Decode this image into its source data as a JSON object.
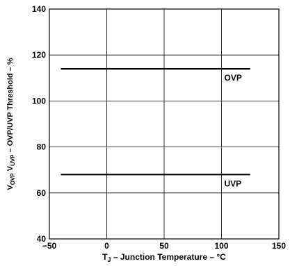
{
  "chart_data": {
    "type": "line",
    "xlim": [
      -50,
      150
    ],
    "ylim": [
      40,
      140
    ],
    "x_ticks": [
      -50,
      0,
      50,
      100,
      150
    ],
    "y_ticks": [
      40,
      60,
      80,
      100,
      120,
      140
    ],
    "x_tick_labels": [
      "−50",
      "0",
      "50",
      "100",
      "150"
    ],
    "y_tick_labels": [
      "40",
      "60",
      "80",
      "100",
      "120",
      "140"
    ],
    "grid": true,
    "xlabel": {
      "t": "T",
      "j": "J",
      "rest": " – Junction Temperature – °C"
    },
    "ylabel": {
      "v1": "V",
      "ovp": "OVP",
      "v2": " V",
      "uvp": "UVP",
      "rest": " – OVP/UVP Threshold – %"
    },
    "series": [
      {
        "name": "OVP",
        "x": [
          -40,
          125
        ],
        "y": [
          114,
          114
        ]
      },
      {
        "name": "UVP",
        "x": [
          -40,
          125
        ],
        "y": [
          68,
          68
        ]
      }
    ],
    "colors": {
      "line": "#000000",
      "grid": "#000000",
      "background": "#ffffff"
    }
  }
}
